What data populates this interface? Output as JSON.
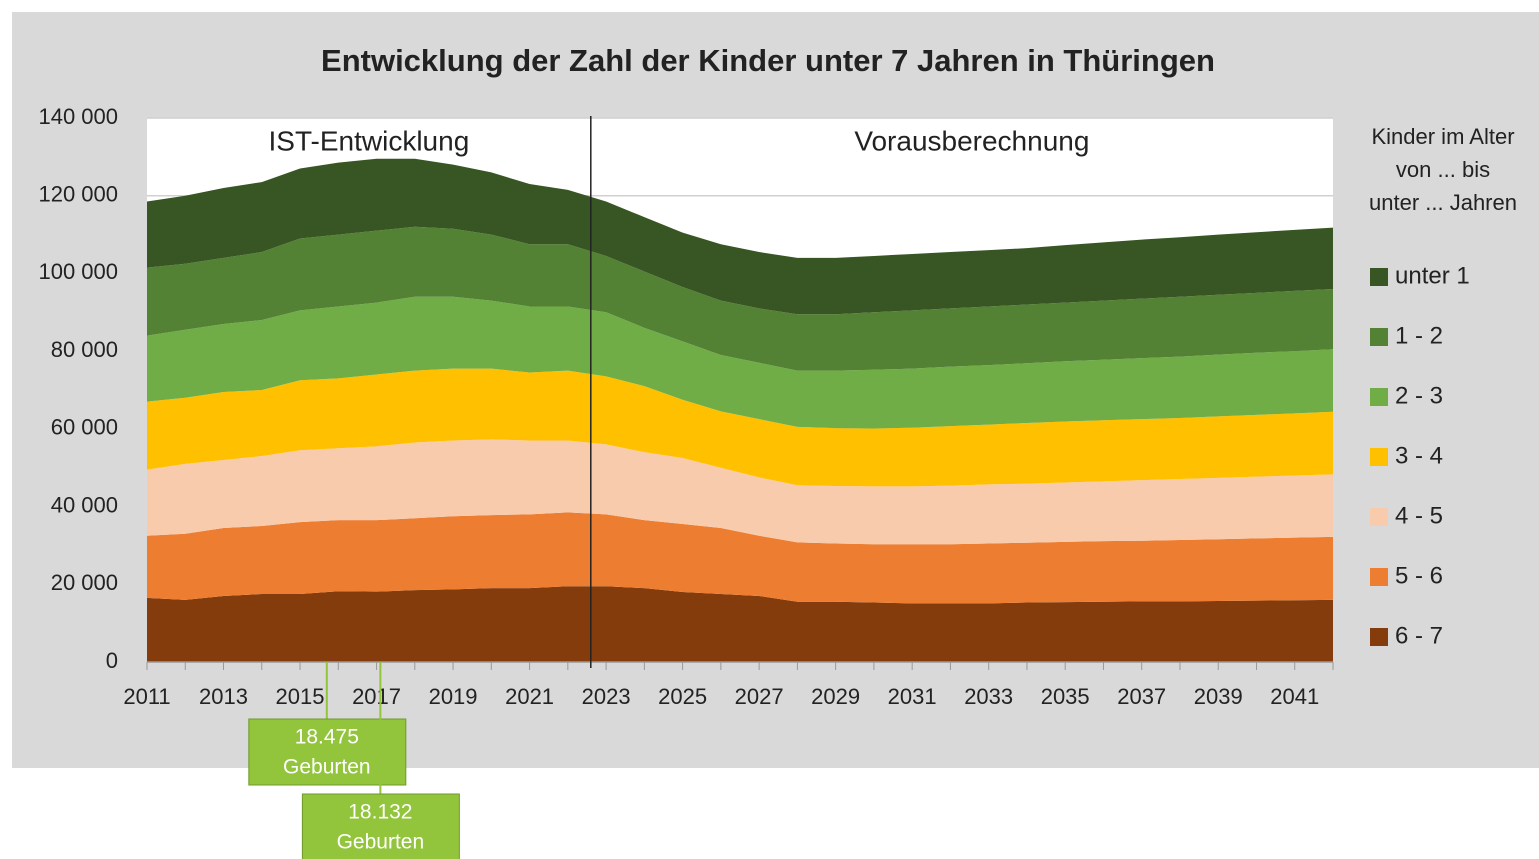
{
  "chart_data": {
    "type": "stacked_area",
    "title": "Entwicklung der Zahl der Kinder unter 7 Jahren in Thüringen",
    "x": [
      2011,
      2012,
      2013,
      2014,
      2015,
      2016,
      2017,
      2018,
      2019,
      2020,
      2021,
      2022,
      2023,
      2024,
      2025,
      2026,
      2027,
      2028,
      2029,
      2030,
      2031,
      2032,
      2033,
      2034,
      2035,
      2036,
      2037,
      2038,
      2039,
      2040,
      2041,
      2042
    ],
    "xlim": [
      2011,
      2042
    ],
    "xticks": [
      2011,
      2013,
      2015,
      2017,
      2019,
      2021,
      2023,
      2025,
      2027,
      2029,
      2031,
      2033,
      2035,
      2037,
      2039,
      2041
    ],
    "ylim": [
      0,
      140000
    ],
    "yticks": [
      0,
      {
        "value": 20000,
        "label": "20 000"
      },
      {
        "value": 40000,
        "label": "40 000"
      },
      {
        "value": 60000,
        "label": "60 000"
      },
      {
        "value": 80000,
        "label": "80 000"
      },
      {
        "value": 100000,
        "label": "100 000"
      },
      {
        "value": 120000,
        "label": "120 000"
      },
      {
        "value": 140000,
        "label": "140 000"
      }
    ],
    "grid": true,
    "legend_title": [
      "Kinder im Alter",
      "von ... bis",
      "unter ... Jahren"
    ],
    "series": [
      {
        "name": "6 - 7",
        "color": "#843c0c",
        "values": [
          16500,
          16000,
          17000,
          17500,
          17500,
          18200,
          18100,
          18500,
          18700,
          19000,
          19000,
          19500,
          19500,
          19000,
          18000,
          17500,
          17000,
          15500,
          15500,
          15300,
          15100,
          15100,
          15100,
          15300,
          15400,
          15500,
          15600,
          15600,
          15700,
          15800,
          15900,
          16000
        ]
      },
      {
        "name": "5 - 6",
        "color": "#ed7d31",
        "values": [
          16000,
          17000,
          17500,
          17500,
          18500,
          18300,
          18400,
          18500,
          18800,
          18800,
          19000,
          19000,
          18500,
          17500,
          17500,
          17000,
          15500,
          15300,
          15000,
          15000,
          15200,
          15200,
          15400,
          15400,
          15500,
          15600,
          15600,
          15800,
          15900,
          16000,
          16100,
          16200
        ]
      },
      {
        "name": "4 - 5",
        "color": "#f8cbad",
        "values": [
          17000,
          18000,
          17500,
          18000,
          18500,
          18500,
          19000,
          19500,
          19500,
          19500,
          19000,
          18500,
          18000,
          17500,
          17000,
          15500,
          15000,
          14700,
          14800,
          14900,
          14900,
          15100,
          15200,
          15200,
          15300,
          15400,
          15600,
          15700,
          15800,
          15900,
          16000,
          16100
        ]
      },
      {
        "name": "3 - 4",
        "color": "#ffc000",
        "values": [
          17500,
          17000,
          17500,
          17000,
          18000,
          18000,
          18500,
          18500,
          18500,
          18200,
          17500,
          18000,
          17500,
          17000,
          15000,
          14500,
          15000,
          15000,
          14900,
          14900,
          15100,
          15300,
          15400,
          15600,
          15700,
          15700,
          15700,
          15700,
          15800,
          15900,
          16000,
          16100
        ]
      },
      {
        "name": "2 - 3",
        "color": "#70ad47",
        "values": [
          17000,
          17500,
          17500,
          18000,
          18000,
          18500,
          18500,
          19000,
          18500,
          17500,
          17000,
          16500,
          16500,
          15000,
          15000,
          14500,
          14500,
          14500,
          14800,
          15100,
          15200,
          15300,
          15300,
          15400,
          15500,
          15600,
          15700,
          15800,
          15900,
          16000,
          16000,
          16100
        ]
      },
      {
        "name": "1 - 2",
        "color": "#548235",
        "values": [
          17500,
          17000,
          17000,
          17500,
          18500,
          18500,
          18500,
          18000,
          17500,
          17000,
          16000,
          16000,
          14500,
          14500,
          14000,
          14000,
          14000,
          14500,
          14500,
          14800,
          15000,
          15000,
          15100,
          15100,
          15100,
          15200,
          15300,
          15400,
          15400,
          15400,
          15500,
          15500
        ]
      },
      {
        "name": "unter 1",
        "color": "#375623",
        "values": [
          17000,
          17500,
          18000,
          18000,
          18000,
          18500,
          18500,
          17500,
          16500,
          16000,
          15500,
          14000,
          14000,
          14000,
          14000,
          14500,
          14500,
          14500,
          14500,
          14500,
          14500,
          14500,
          14500,
          14500,
          14800,
          15000,
          15200,
          15300,
          15500,
          15600,
          15700,
          15800
        ]
      }
    ],
    "divider": 2022.6,
    "periods": [
      "IST-Entwicklung",
      "Vorausberechnung"
    ],
    "annotations": [
      {
        "value": "18.475",
        "text": "Geburten",
        "x": 2015.7
      },
      {
        "value": "18.132",
        "text": "Geburten",
        "x": 2017.1
      }
    ],
    "annotation_color": "#92c43c"
  }
}
